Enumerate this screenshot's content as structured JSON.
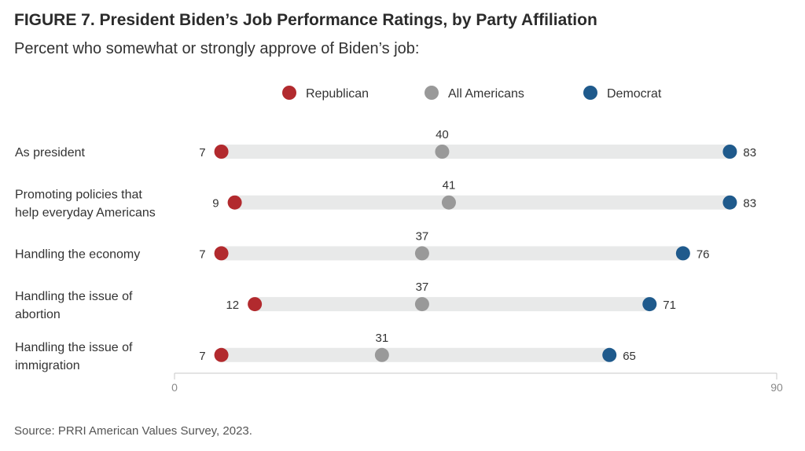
{
  "figure": {
    "title": "FIGURE 7.  President Biden’s Job Performance Ratings, by Party Affiliation",
    "subtitle": "Percent who somewhat or strongly approve of Biden’s job:",
    "source": "Source: PRRI American Values Survey, 2023."
  },
  "chart_data": {
    "type": "dot-range",
    "categories": [
      [
        "As president"
      ],
      [
        "Promoting policies that",
        "help everyday Americans"
      ],
      [
        "Handling the economy"
      ],
      [
        "Handling the issue of",
        "abortion"
      ],
      [
        "Handling the issue of",
        "immigration"
      ]
    ],
    "series": [
      {
        "name": "Republican",
        "color": "#b22a2e",
        "values": [
          7,
          9,
          7,
          12,
          7
        ]
      },
      {
        "name": "All Americans",
        "color": "#999999",
        "values": [
          40,
          41,
          37,
          37,
          31
        ]
      },
      {
        "name": "Democrat",
        "color": "#1f5a8c",
        "values": [
          83,
          83,
          76,
          71,
          65
        ]
      }
    ],
    "xlim": [
      0,
      90
    ],
    "xticks": [
      "0",
      "90"
    ],
    "legend_position": "top-center",
    "grid": false
  }
}
